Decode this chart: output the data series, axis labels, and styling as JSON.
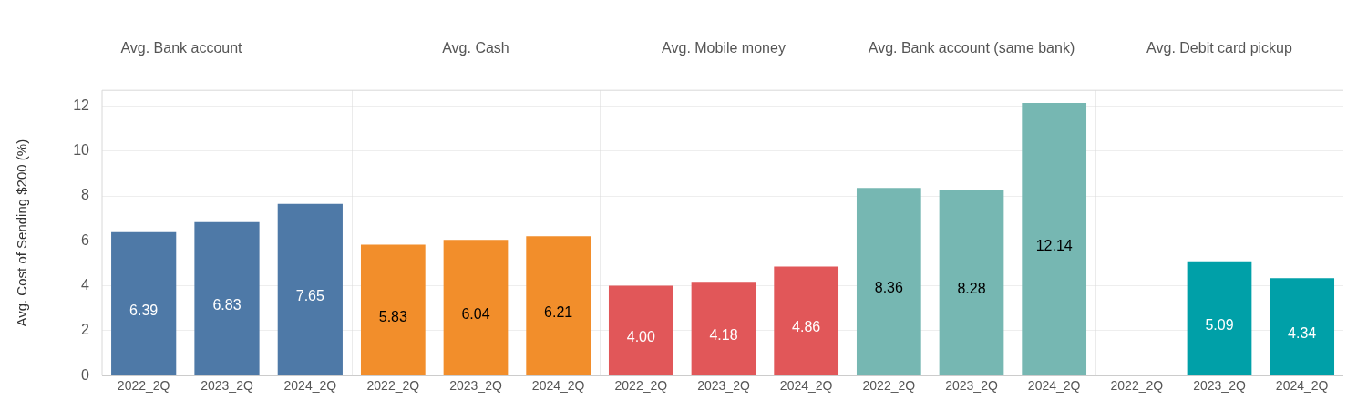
{
  "chart_data": [
    {
      "type": "bar",
      "title": "Avg. Bank account",
      "ylabel": "Avg. Cost of Sending $200 (%)",
      "categories": [
        "2022_2Q",
        "2023_2Q",
        "2024_2Q"
      ],
      "values": [
        6.39,
        6.83,
        7.65
      ],
      "value_labels": [
        "6.39",
        "6.83",
        "7.65"
      ],
      "color": "#4e79a7",
      "ylim": [
        0,
        12.7
      ],
      "yticks": [
        0,
        2,
        4,
        6,
        8,
        10,
        12
      ],
      "grid": "y"
    },
    {
      "type": "bar",
      "title": "Avg. Cash",
      "categories": [
        "2022_2Q",
        "2023_2Q",
        "2024_2Q"
      ],
      "values": [
        5.83,
        6.04,
        6.21
      ],
      "value_labels": [
        "5.83",
        "6.04",
        "6.21"
      ],
      "color": "#f28e2b",
      "ylim": [
        0,
        12.7
      ],
      "yticks": [
        0,
        2,
        4,
        6,
        8,
        10,
        12
      ],
      "grid": "y",
      "tick_labels": "x"
    },
    {
      "type": "bar",
      "title": "Avg. Mobile money",
      "categories": [
        "2022_2Q",
        "2023_2Q",
        "2024_2Q"
      ],
      "values": [
        4.0,
        4.18,
        4.86
      ],
      "value_labels": [
        "4.00",
        "4.18",
        "4.86"
      ],
      "color": "#e15759",
      "ylim": [
        0,
        12.7
      ],
      "yticks": [
        0,
        2,
        4,
        6,
        8,
        10,
        12
      ],
      "grid": "y",
      "tick_labels": "x"
    },
    {
      "type": "bar",
      "title": "Avg. Bank account (same bank)",
      "categories": [
        "2022_2Q",
        "2023_2Q",
        "2024_2Q"
      ],
      "values": [
        8.36,
        8.28,
        12.14
      ],
      "value_labels": [
        "8.36",
        "8.28",
        "12.14"
      ],
      "color": "#76b7b2",
      "ylim": [
        0,
        12.7
      ],
      "yticks": [
        0,
        2,
        4,
        6,
        8,
        10,
        12
      ],
      "grid": "y",
      "tick_labels": "x"
    },
    {
      "type": "bar",
      "title": "Avg. Debit card pickup",
      "categories": [
        "2022_2Q",
        "2023_2Q",
        "2024_2Q"
      ],
      "values": [
        null,
        5.09,
        4.34
      ],
      "value_labels": [
        null,
        "5.09",
        "4.34"
      ],
      "color": "#00a0a8",
      "ylim": [
        0,
        12.7
      ],
      "yticks": [
        0,
        2,
        4,
        6,
        8,
        10,
        12
      ],
      "grid": "y",
      "tick_labels": "x"
    }
  ]
}
